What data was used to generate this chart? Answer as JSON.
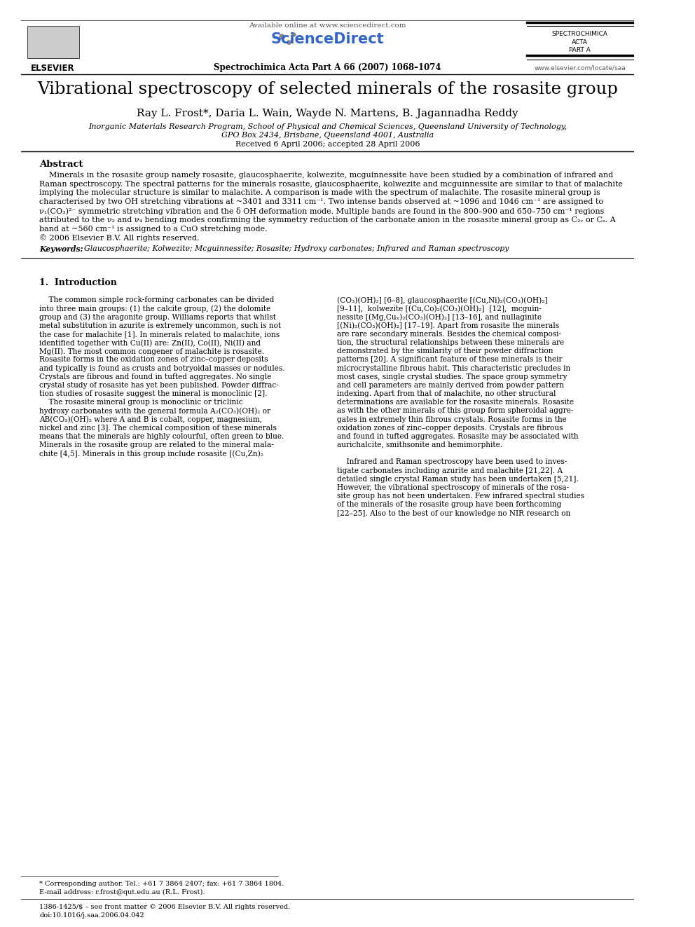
{
  "page_width": 9.92,
  "page_height": 13.23,
  "bg_color": "#ffffff",
  "title": "Vibrational spectroscopy of selected minerals of the rosasite group",
  "authors": "Ray L. Frost*, Daria L. Wain, Wayde N. Martens, B. Jagannadha Reddy",
  "affiliation1": "Inorganic Materials Research Program, School of Physical and Chemical Sciences, Queensland University of Technology,",
  "affiliation2": "GPO Box 2434, Brisbane, Queensland 4001, Australia",
  "received": "Received 6 April 2006; accepted 28 April 2006",
  "journal_header": "Spectrochimica Acta Part A 66 (2007) 1068–1074",
  "available_online": "Available online at www.sciencedirect.com",
  "journal_name1": "SPECTROCHIMICA",
  "journal_name2": "ACTA",
  "journal_name3": "PART A",
  "website": "www.elsevier.com/locate/saa",
  "abstract_title": "Abstract",
  "copyright": "© 2006 Elsevier B.V. All rights reserved.",
  "keywords_label": "Keywords:",
  "keywords_text": "  Glaucosphaerite; Kolwezite; Mcguinnessite; Rosasite; Hydroxy carbonates; Infrared and Raman spectroscopy",
  "section1_title": "1.  Introduction",
  "footer_text1": "* Corresponding author. Tel.: +61 7 3864 2407; fax: +61 7 3864 1804.",
  "footer_text2": "E-mail address: r.frost@qut.edu.au (R.L. Frost).",
  "footer_text3": "1386-1425/$ – see front matter © 2006 Elsevier B.V. All rights reserved.",
  "footer_text4": "doi:10.1016/j.saa.2006.04.042",
  "abstract_lines": [
    "    Minerals in the rosasite group namely rosasite, glaucosphaerite, kolwezite, mcguinnessite have been studied by a combination of infrared and",
    "Raman spectroscopy. The spectral patterns for the minerals rosasite, glaucosphaerite, kolwezite and mcguinnessite are similar to that of malachite",
    "implying the molecular structure is similar to malachite. A comparison is made with the spectrum of malachite. The rosasite mineral group is",
    "characterised by two OH stretching vibrations at ~3401 and 3311 cm⁻¹. Two intense bands observed at ~1096 and 1046 cm⁻¹ are assigned to",
    "ν₁(CO₃)²⁻ symmetric stretching vibration and the δ OH deformation mode. Multiple bands are found in the 800–900 and 650–750 cm⁻¹ regions",
    "attributed to the ν₂ and ν₄ bending modes confirming the symmetry reduction of the carbonate anion in the rosasite mineral group as C₂ᵥ or Cₛ. A",
    "band at ~560 cm⁻¹ is assigned to a CuO stretching mode."
  ],
  "intro_col1_lines": [
    "    The common simple rock-forming carbonates can be divided",
    "into three main groups: (1) the calcite group, (2) the dolomite",
    "group and (3) the aragonite group. Williams reports that whilst",
    "metal substitution in azurite is extremely uncommon, such is not",
    "the case for malachite [1]. In minerals related to malachite, ions",
    "identified together with Cu(II) are: Zn(II), Co(II), Ni(II) and",
    "Mg(II). The most common congener of malachite is rosasite.",
    "Rosasite forms in the oxidation zones of zinc–copper deposits",
    "and typically is found as crusts and botryoidal masses or nodules.",
    "Crystals are fibrous and found in tufted aggregates. No single",
    "crystal study of rosasite has yet been published. Powder diffrac-",
    "tion studies of rosasite suggest the mineral is monoclinic [2].",
    "    The rosasite mineral group is monoclinic or triclinic",
    "hydroxy carbonates with the general formula A₂(CO₃)(OH)₂ or",
    "AB(CO₃)(OH)₂ where A and B is cobalt, copper, magnesium,",
    "nickel and zinc [3]. The chemical composition of these minerals",
    "means that the minerals are highly colourful, often green to blue.",
    "Minerals in the rosasite group are related to the mineral mala-",
    "chite [4,5]. Minerals in this group include rosasite [(Cu,Zn)₂"
  ],
  "intro_col2_lines": [
    "(CO₃)(OH)₂] [6–8], glaucosphaerite [(Cu,Ni)₂(CO₃)(OH)₂]",
    "[9–11],  kolwezite [(Cu,Co)₂(CO₃)(OH)₂]  [12],  mcguin-",
    "nessite [(Mg,Cuₓ)₂(CO₃)(OH)₂] [13–16], and nullaginite",
    "[(Ni)₂(CO₃)(OH)₂] [17–19]. Apart from rosasite the minerals",
    "are rare secondary minerals. Besides the chemical composi-",
    "tion, the structural relationships between these minerals are",
    "demonstrated by the similarity of their powder diffraction",
    "patterns [20]. A significant feature of these minerals is their",
    "microcrystalline fibrous habit. This characteristic precludes in",
    "most cases, single crystal studies. The space group symmetry",
    "and cell parameters are mainly derived from powder pattern",
    "indexing. Apart from that of malachite, no other structural",
    "determinations are available for the rosasite minerals. Rosasite",
    "as with the other minerals of this group form spheroidal aggre-",
    "gates in extremely thin fibrous crystals. Rosasite forms in the",
    "oxidation zones of zinc–copper deposits. Crystals are fibrous",
    "and found in tufted aggregates. Rosasite may be associated with",
    "aurichalcite, smithsonite and hemimorphite.",
    "",
    "    Infrared and Raman spectroscopy have been used to inves-",
    "tigate carbonates including azurite and malachite [21,22]. A",
    "detailed single crystal Raman study has been undertaken [5,21].",
    "However, the vibrational spectroscopy of minerals of the rosa-",
    "site group has not been undertaken. Few infrared spectral studies",
    "of the minerals of the rosasite group have been forthcoming",
    "[22–25]. Also to the best of our knowledge no NIR research on"
  ]
}
